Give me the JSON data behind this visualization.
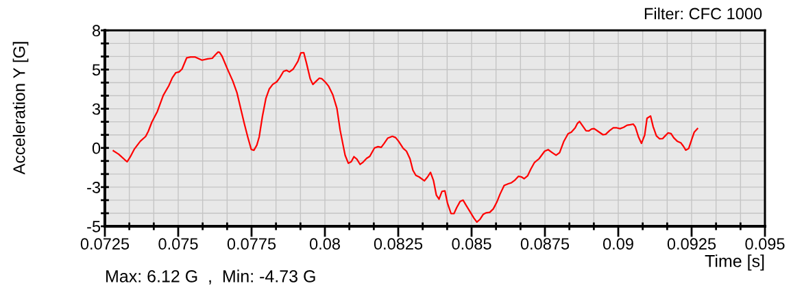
{
  "chart_data": {
    "type": "line",
    "title": "Filter: CFC 1000",
    "xlabel": "Time [s]",
    "ylabel": "Acceleration Y [G]",
    "annotations": [
      "Max: 6.12 G  ,  Min: -4.73 G"
    ],
    "x": [
      0.07279,
      0.07297,
      0.0732,
      0.07326,
      0.07336,
      0.07351,
      0.07371,
      0.07389,
      0.07398,
      0.0741,
      0.07429,
      0.07449,
      0.07468,
      0.0748,
      0.07492,
      0.07503,
      0.07513,
      0.07529,
      0.07542,
      0.07558,
      0.07581,
      0.076,
      0.07616,
      0.07628,
      0.07636,
      0.07641,
      0.07649,
      0.07667,
      0.07686,
      0.077,
      0.07714,
      0.07725,
      0.07737,
      0.07749,
      0.07758,
      0.07768,
      0.07776,
      0.07787,
      0.07799,
      0.0781,
      0.07822,
      0.07836,
      0.07846,
      0.07859,
      0.07869,
      0.07879,
      0.07892,
      0.07908,
      0.07918,
      0.07928,
      0.07937,
      0.0795,
      0.07959,
      0.07971,
      0.07981,
      0.0799,
      0.08002,
      0.08013,
      0.08027,
      0.08041,
      0.08052,
      0.08062,
      0.08069,
      0.0808,
      0.0809,
      0.08099,
      0.08109,
      0.0812,
      0.0813,
      0.08142,
      0.08153,
      0.08169,
      0.08181,
      0.08192,
      0.08202,
      0.08214,
      0.0823,
      0.08241,
      0.08251,
      0.08267,
      0.08278,
      0.0829,
      0.083,
      0.0831,
      0.08321,
      0.08339,
      0.0835,
      0.0836,
      0.0837,
      0.0838,
      0.08389,
      0.08399,
      0.08409,
      0.08418,
      0.0843,
      0.0844,
      0.08449,
      0.08461,
      0.08471,
      0.08482,
      0.08496,
      0.08508,
      0.08518,
      0.08529,
      0.0854,
      0.0855,
      0.08562,
      0.08574,
      0.08586,
      0.08597,
      0.08611,
      0.08625,
      0.08636,
      0.08648,
      0.0866,
      0.0867,
      0.08679,
      0.08691,
      0.08702,
      0.08714,
      0.0873,
      0.08749,
      0.08761,
      0.08775,
      0.08788,
      0.088,
      0.08814,
      0.08829,
      0.0884,
      0.08853,
      0.08861,
      0.08868,
      0.08879,
      0.0889,
      0.089,
      0.08909,
      0.08918,
      0.08931,
      0.08948,
      0.08957,
      0.0897,
      0.08983,
      0.08995,
      0.09006,
      0.09018,
      0.0903,
      0.09041,
      0.09051,
      0.09058,
      0.09069,
      0.09079,
      0.0909,
      0.09098,
      0.0911,
      0.09119,
      0.0913,
      0.09141,
      0.09151,
      0.0916,
      0.0917,
      0.0918,
      0.09189,
      0.09201,
      0.09213,
      0.09222,
      0.0923,
      0.0924,
      0.0925,
      0.09259,
      0.0927
    ],
    "series": [
      {
        "color": "#ff0000",
        "values": [
          -0.18,
          -0.4,
          -0.79,
          -0.88,
          -0.59,
          -0.06,
          0.43,
          0.73,
          1.06,
          1.64,
          2.33,
          3.35,
          3.97,
          4.48,
          4.8,
          4.85,
          5.03,
          5.75,
          5.8,
          5.8,
          5.6,
          5.68,
          5.72,
          5.97,
          6.12,
          6.1,
          5.87,
          5.07,
          4.27,
          3.54,
          2.44,
          1.57,
          0.7,
          -0.1,
          -0.15,
          0.18,
          0.7,
          2.01,
          3.17,
          3.75,
          4.05,
          4.22,
          4.48,
          4.89,
          4.95,
          4.85,
          5.03,
          5.53,
          6.06,
          6.08,
          5.43,
          4.41,
          4.05,
          4.27,
          4.45,
          4.41,
          4.19,
          3.93,
          3.39,
          2.52,
          1.13,
          0.18,
          -0.47,
          -0.98,
          -0.88,
          -0.56,
          -0.72,
          -1.05,
          -0.91,
          -0.67,
          -0.54,
          0.0,
          0.08,
          0.04,
          0.29,
          0.62,
          0.74,
          0.66,
          0.43,
          -0.03,
          -0.21,
          -0.69,
          -1.42,
          -1.75,
          -1.85,
          -2.1,
          -1.85,
          -1.56,
          -2.07,
          -3.02,
          -3.27,
          -2.77,
          -2.74,
          -3.53,
          -4.19,
          -4.19,
          -3.82,
          -3.41,
          -3.33,
          -3.68,
          -4.11,
          -4.48,
          -4.73,
          -4.55,
          -4.23,
          -4.14,
          -4.11,
          -3.89,
          -3.46,
          -2.95,
          -2.4,
          -2.29,
          -2.22,
          -2.05,
          -1.81,
          -1.85,
          -1.96,
          -1.78,
          -1.35,
          -0.94,
          -0.69,
          -0.21,
          -0.11,
          -0.3,
          -0.47,
          -0.3,
          0.4,
          0.91,
          1.01,
          1.28,
          1.57,
          1.69,
          1.39,
          1.1,
          1.09,
          1.21,
          1.23,
          1.06,
          0.84,
          0.87,
          1.1,
          1.28,
          1.28,
          1.23,
          1.31,
          1.45,
          1.48,
          1.52,
          1.35,
          0.7,
          0.29,
          0.81,
          1.89,
          2.04,
          1.35,
          0.77,
          0.58,
          0.59,
          0.77,
          0.96,
          0.91,
          0.65,
          0.43,
          0.33,
          0.11,
          -0.14,
          -0.04,
          0.52,
          1.01,
          1.23
        ]
      }
    ],
    "xlim": [
      0.0725,
      0.095
    ],
    "xticks": [
      0.0725,
      {
        "value": 0.073333,
        "label": null
      },
      {
        "value": 0.074167,
        "label": null
      },
      0.075,
      {
        "value": 0.075833,
        "label": null
      },
      {
        "value": 0.076667,
        "label": null
      },
      0.0775,
      {
        "value": 0.078333,
        "label": null
      },
      {
        "value": 0.079167,
        "label": null
      },
      0.08,
      {
        "value": 0.080833,
        "label": null
      },
      {
        "value": 0.081667,
        "label": null
      },
      0.0825,
      {
        "value": 0.083333,
        "label": null
      },
      {
        "value": 0.084167,
        "label": null
      },
      0.085,
      {
        "value": 0.085833,
        "label": null
      },
      {
        "value": 0.086667,
        "label": null
      },
      0.0875,
      {
        "value": 0.088333,
        "label": null
      },
      {
        "value": 0.089167,
        "label": null
      },
      0.09,
      {
        "value": 0.090833,
        "label": null
      },
      {
        "value": 0.091667,
        "label": null
      },
      0.0925,
      {
        "value": 0.093333,
        "label": null
      },
      {
        "value": 0.094167,
        "label": null
      },
      0.095
    ],
    "ylim": [
      -5,
      7.5
    ],
    "yticks": [
      -5,
      {
        "value": -4.167,
        "label": null
      },
      {
        "value": -3.333,
        "label": null
      },
      {
        "value": -2.5,
        "label": "-3"
      },
      {
        "value": -1.667,
        "label": null
      },
      {
        "value": -0.833,
        "label": null
      },
      0,
      {
        "value": 0.833,
        "label": null
      },
      {
        "value": 1.667,
        "label": null
      },
      {
        "value": 2.5,
        "label": "3"
      },
      {
        "value": 3.333,
        "label": null
      },
      {
        "value": 4.167,
        "label": null
      },
      5,
      {
        "value": 5.833,
        "label": null
      },
      {
        "value": 6.667,
        "label": null
      },
      {
        "value": 7.5,
        "label": "8"
      }
    ],
    "grid": true
  }
}
